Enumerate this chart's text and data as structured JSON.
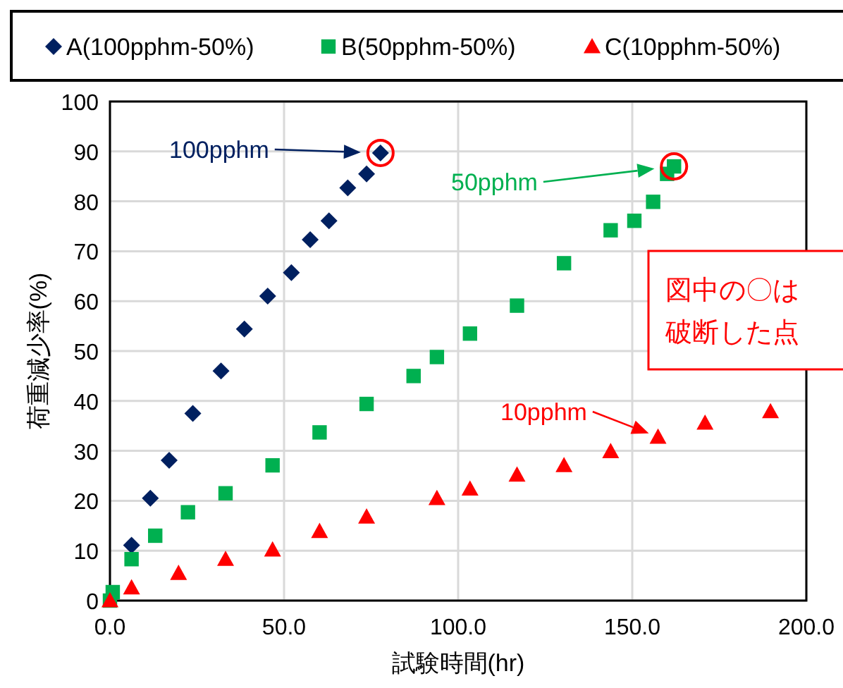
{
  "chart_data": {
    "type": "scatter",
    "xlabel": "試験時間(hr)",
    "ylabel": "荷重減少率(%)",
    "xlim": [
      0,
      200
    ],
    "xticks": [
      {
        "value": 0,
        "label": "0.0"
      },
      {
        "value": 50,
        "label": "50.0"
      },
      {
        "value": 100,
        "label": "100.0"
      },
      {
        "value": 150,
        "label": "150.0"
      },
      {
        "value": 200,
        "label": "200.0"
      }
    ],
    "ylim": [
      0,
      100
    ],
    "yticks": [
      0,
      10,
      20,
      30,
      40,
      50,
      60,
      70,
      80,
      90,
      100
    ],
    "grid": true,
    "legend": "top",
    "series": [
      {
        "name": "A(100pphm-50%)",
        "color": "#002060",
        "marker": "diamond",
        "x": [
          6.2,
          11.6,
          17.0,
          23.8,
          31.9,
          38.6,
          45.3,
          52.1,
          57.5,
          62.9,
          68.3,
          73.7,
          77.7
        ],
        "values": [
          11.1,
          20.5,
          28.1,
          37.5,
          46.0,
          54.4,
          61.0,
          65.7,
          72.3,
          76.1,
          82.7,
          85.5,
          89.7
        ]
      },
      {
        "name": "B(50pphm-50%)",
        "color": "#00b050",
        "marker": "square",
        "x": [
          0,
          0.8,
          6.2,
          13,
          22.4,
          33.2,
          46.7,
          60.2,
          73.7,
          87.2,
          93.9,
          103.4,
          116.9,
          130.4,
          143.8,
          150.6,
          156,
          160,
          162
        ],
        "values": [
          0,
          1.7,
          8.3,
          13,
          17.7,
          21.5,
          27.1,
          33.7,
          39.4,
          45.0,
          48.8,
          53.5,
          59.1,
          67.6,
          74.2,
          76.1,
          79.9,
          85.5,
          87
        ]
      },
      {
        "name": "C(10pphm-50%)",
        "color": "#ff0000",
        "marker": "triangle",
        "x": [
          0,
          6.2,
          19.7,
          33.2,
          46.7,
          60.2,
          73.7,
          93.9,
          103.4,
          116.9,
          130.4,
          143.8,
          157.4,
          170.9,
          189.7
        ],
        "values": [
          0,
          2.6,
          5.5,
          8.3,
          10.2,
          13.9,
          16.8,
          20.5,
          22.4,
          25.2,
          27.1,
          29.9,
          32.8,
          35.6,
          37.9
        ]
      }
    ],
    "annotations": [
      "100pphm",
      "50pphm",
      {
        "text": "10pphm",
        "x": 157.4,
        "y": 32.8
      },
      "図中の〇は破断した点"
    ]
  }
}
